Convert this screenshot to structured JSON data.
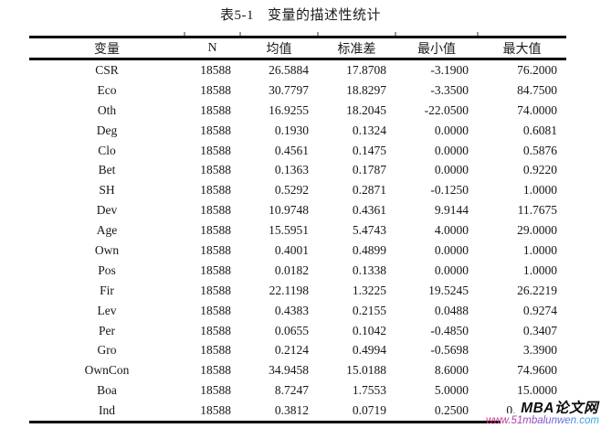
{
  "title": {
    "tag": "表5-1",
    "text": "变量的描述性统计"
  },
  "table": {
    "columns": [
      "变量",
      "N",
      "均值",
      "标准差",
      "最小值",
      "最大值"
    ],
    "rows": [
      [
        "CSR",
        "18588",
        "26.5884",
        "17.8708",
        "-3.1900",
        "76.2000"
      ],
      [
        "Eco",
        "18588",
        "30.7797",
        "18.8297",
        "-3.3500",
        "84.7500"
      ],
      [
        "Oth",
        "18588",
        "16.9255",
        "18.2045",
        "-22.0500",
        "74.0000"
      ],
      [
        "Deg",
        "18588",
        "0.1930",
        "0.1324",
        "0.0000",
        "0.6081"
      ],
      [
        "Clo",
        "18588",
        "0.4561",
        "0.1475",
        "0.0000",
        "0.5876"
      ],
      [
        "Bet",
        "18588",
        "0.1363",
        "0.1787",
        "0.0000",
        "0.9220"
      ],
      [
        "SH",
        "18588",
        "0.5292",
        "0.2871",
        "-0.1250",
        "1.0000"
      ],
      [
        "Dev",
        "18588",
        "10.9748",
        "0.4361",
        "9.9144",
        "11.7675"
      ],
      [
        "Age",
        "18588",
        "15.5951",
        "5.4743",
        "4.0000",
        "29.0000"
      ],
      [
        "Own",
        "18588",
        "0.4001",
        "0.4899",
        "0.0000",
        "1.0000"
      ],
      [
        "Pos",
        "18588",
        "0.0182",
        "0.1338",
        "0.0000",
        "1.0000"
      ],
      [
        "Fir",
        "18588",
        "22.1198",
        "1.3225",
        "19.5245",
        "26.2219"
      ],
      [
        "Lev",
        "18588",
        "0.4383",
        "0.2155",
        "0.0488",
        "0.9274"
      ],
      [
        "Per",
        "18588",
        "0.0655",
        "0.1042",
        "-0.4850",
        "0.3407"
      ],
      [
        "Gro",
        "18588",
        "0.2124",
        "0.4994",
        "-0.5698",
        "3.3900"
      ],
      [
        "OwnCon",
        "18588",
        "34.9458",
        "15.0188",
        "8.6000",
        "74.9600"
      ],
      [
        "Boa",
        "18588",
        "8.7247",
        "1.7553",
        "5.0000",
        "15.0000"
      ],
      [
        "Ind",
        "18588",
        "0.3812",
        "0.0719",
        "0.2500",
        "0.60"
      ]
    ]
  },
  "watermark": {
    "brand": "MBA论文网",
    "url": "www.51mbalunwen.com",
    "url_gradient": [
      "#e8246e",
      "#7a51d6",
      "#25b3e8"
    ]
  }
}
